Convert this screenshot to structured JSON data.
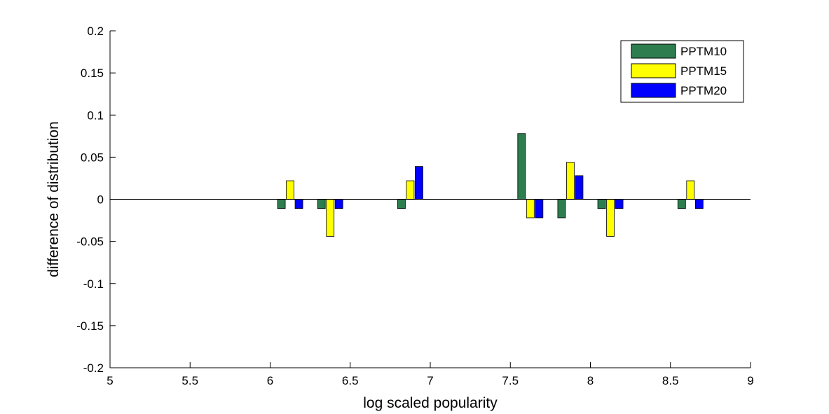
{
  "chart_data": {
    "type": "bar",
    "title": "",
    "xlabel": "log scaled popularity",
    "ylabel": "difference of distribution",
    "xlim": [
      5,
      9
    ],
    "ylim": [
      -0.2,
      0.2
    ],
    "x_ticks": [
      5,
      5.5,
      6,
      6.5,
      7,
      7.5,
      8,
      8.5,
      9
    ],
    "x_tick_labels": [
      "5",
      "5.5",
      "6",
      "6.5",
      "7",
      "7.5",
      "8",
      "8.5",
      "9"
    ],
    "y_ticks": [
      0.2,
      0.15,
      0.1,
      0.05,
      0,
      -0.05,
      -0.1,
      -0.15,
      -0.2
    ],
    "y_tick_labels": [
      "0.2",
      "0.15",
      "0.1",
      "0.05",
      "0",
      "-0.05",
      "-0.1",
      "-0.15",
      "-0.2"
    ],
    "grid": false,
    "legend_position": "top-right",
    "x": [
      6.125,
      6.375,
      6.875,
      7.625,
      7.875,
      8.125,
      8.625
    ],
    "series": [
      {
        "name": "PPTM10",
        "color": "#2e7d4f",
        "values": [
          -0.011,
          -0.011,
          -0.011,
          0.078,
          -0.022,
          -0.011,
          -0.011
        ]
      },
      {
        "name": "PPTM15",
        "color": "#ffff00",
        "values": [
          0.022,
          -0.044,
          0.022,
          -0.022,
          0.044,
          -0.044,
          0.022
        ]
      },
      {
        "name": "PPTM20",
        "color": "#0000ff",
        "values": [
          -0.011,
          -0.011,
          0.039,
          -0.022,
          0.028,
          -0.011,
          -0.011
        ]
      }
    ]
  }
}
